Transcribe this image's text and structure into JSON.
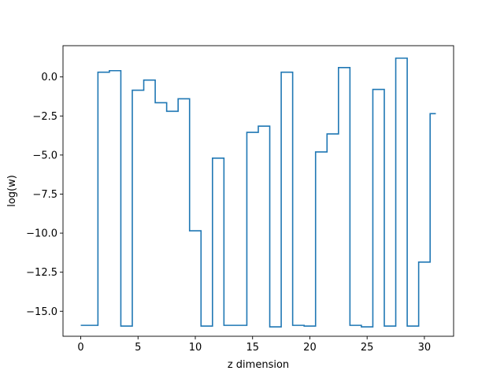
{
  "chart_data": {
    "type": "line",
    "drawstyle": "steps-mid",
    "title": "",
    "xlabel": "z dimension",
    "ylabel": "log(w)",
    "xlim": [
      -1.55,
      32.55
    ],
    "ylim": [
      -16.6,
      2.0
    ],
    "xticks": [
      0,
      5,
      10,
      15,
      20,
      25,
      30
    ],
    "yticks": [
      -15.0,
      -12.5,
      -10.0,
      -7.5,
      -5.0,
      -2.5,
      0.0
    ],
    "ytick_labels": [
      "−15.0",
      "−12.5",
      "−10.0",
      "−7.5",
      "−5.0",
      "−2.5",
      "0.0"
    ],
    "grid": false,
    "series": [
      {
        "color": "#1f77b4",
        "x": [
          0,
          1,
          2,
          3,
          4,
          5,
          6,
          7,
          8,
          9,
          10,
          11,
          12,
          13,
          14,
          15,
          16,
          17,
          18,
          19,
          20,
          21,
          22,
          23,
          24,
          25,
          26,
          27,
          28,
          29,
          30,
          31
        ],
        "y": [
          -15.9,
          -15.9,
          0.3,
          0.4,
          -15.95,
          -0.85,
          -0.2,
          -1.65,
          -2.2,
          -1.4,
          -9.85,
          -15.95,
          -5.2,
          -15.9,
          -15.9,
          -3.55,
          -3.15,
          -16.0,
          0.3,
          -15.9,
          -15.95,
          -4.8,
          -3.65,
          0.6,
          -15.9,
          -16.0,
          -0.8,
          -15.95,
          1.2,
          -15.95,
          -11.85,
          -2.35
        ]
      }
    ]
  }
}
